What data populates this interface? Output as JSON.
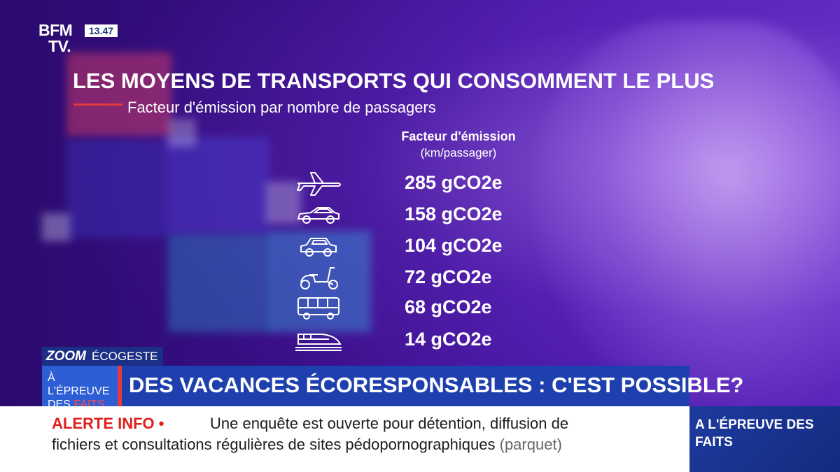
{
  "channel": {
    "logo_line1": "BFM",
    "logo_line2": "TV.",
    "time": "13.47"
  },
  "graphic": {
    "title": "LES MOYENS DE TRANSPORTS QUI CONSOMMENT LE PLUS",
    "subtitle": "Facteur d'émission par nombre de passagers",
    "column_header": "Facteur d'émission",
    "column_unit": "(km/passager)",
    "rows": [
      {
        "icon": "airplane-icon",
        "value": "285 gCO2e"
      },
      {
        "icon": "sports-car-icon",
        "value": "158 gCO2e"
      },
      {
        "icon": "car-icon",
        "value": "104 gCO2e"
      },
      {
        "icon": "scooter-icon",
        "value": "72 gCO2e"
      },
      {
        "icon": "bus-icon",
        "value": "68 gCO2e"
      },
      {
        "icon": "train-icon",
        "value": "14 gCO2e"
      }
    ]
  },
  "lower_third": {
    "segment_logo": "ZOOM",
    "segment_label": "ÉCOGESTE",
    "tag_line1": "À L'ÉPREUVE",
    "tag_line2a": "DES ",
    "tag_line2b": "FAITS",
    "headline": "DES VACANCES ÉCORESPONSABLES : C'EST POSSIBLE?"
  },
  "ticker": {
    "label": "ALERTE INFO •",
    "line1": "Une enquête est ouverte pour détention, diffusion de",
    "line2": "fichiers et consultations régulières de sites pédopornographiques",
    "source": "(parquet)"
  },
  "side_box": {
    "text": "A L'ÉPREUVE DES FAITS"
  },
  "colors": {
    "accent_red": "#e23b3b",
    "bar_blue": "#1e3fae",
    "background_purple": "#3a0f8a"
  }
}
